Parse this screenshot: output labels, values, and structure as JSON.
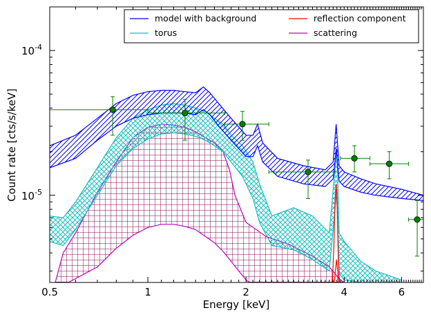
{
  "chart_data": {
    "type": "line",
    "title": "",
    "xlabel": "Energy [keV]",
    "ylabel": "Count rate [cts/s/keV]",
    "xscale": "log",
    "yscale": "log",
    "xlim": [
      0.5,
      7.0
    ],
    "ylim": [
      2.5e-06,
      0.0002
    ],
    "grid": false,
    "legend_position": "top-right",
    "xtick_labels": [
      "0.5",
      "1",
      "2",
      "4",
      "6"
    ],
    "xticks": [
      0.5,
      1,
      2,
      4,
      6
    ],
    "ytick_labels": [
      {
        "base": "10",
        "exp": "-5",
        "value": 1e-05
      },
      {
        "base": "10",
        "exp": "-4",
        "value": 0.0001
      }
    ],
    "legend": [
      {
        "label": "model with background",
        "color": "#0000ff"
      },
      {
        "label": "torus",
        "color": "#17bebe"
      },
      {
        "label": "reflection component",
        "color": "#ff0000"
      },
      {
        "label": "scattering",
        "color": "#bf00bf"
      }
    ],
    "series": [
      {
        "name": "model with background",
        "color": "#0000ff",
        "band": true,
        "upper": [
          [
            0.5,
            2.2e-05
          ],
          [
            0.6,
            2.6e-05
          ],
          [
            0.7,
            3.4e-05
          ],
          [
            0.8,
            4.3e-05
          ],
          [
            0.9,
            4.9e-05
          ],
          [
            1.0,
            5.2e-05
          ],
          [
            1.1,
            5.3e-05
          ],
          [
            1.2,
            5.3e-05
          ],
          [
            1.3,
            5.2e-05
          ],
          [
            1.4,
            5.1e-05
          ],
          [
            1.48,
            5.6e-05
          ],
          [
            1.55,
            5.1e-05
          ],
          [
            1.65,
            4.3e-05
          ],
          [
            1.8,
            3.4e-05
          ],
          [
            2.0,
            2.6e-05
          ],
          [
            2.1,
            2.6e-05
          ],
          [
            2.17,
            3.1e-05
          ],
          [
            2.25,
            2.3e-05
          ],
          [
            2.5,
            1.8e-05
          ],
          [
            3.0,
            1.6e-05
          ],
          [
            3.5,
            1.5e-05
          ],
          [
            3.7,
            1.7e-05
          ],
          [
            3.78,
            3.1e-05
          ],
          [
            3.86,
            1.6e-05
          ],
          [
            4.0,
            1.45e-05
          ],
          [
            4.5,
            1.3e-05
          ],
          [
            5.0,
            1.2e-05
          ],
          [
            6.0,
            1.1e-05
          ],
          [
            7.0,
            1e-05
          ]
        ],
        "lower": [
          [
            0.5,
            1.55e-05
          ],
          [
            0.6,
            1.8e-05
          ],
          [
            0.7,
            2.4e-05
          ],
          [
            0.8,
            3e-05
          ],
          [
            0.9,
            3.4e-05
          ],
          [
            1.0,
            3.6e-05
          ],
          [
            1.1,
            3.7e-05
          ],
          [
            1.2,
            3.7e-05
          ],
          [
            1.3,
            3.7e-05
          ],
          [
            1.4,
            3.6e-05
          ],
          [
            1.48,
            3.9e-05
          ],
          [
            1.55,
            3.6e-05
          ],
          [
            1.65,
            3e-05
          ],
          [
            1.8,
            2.4e-05
          ],
          [
            2.0,
            1.85e-05
          ],
          [
            2.1,
            1.85e-05
          ],
          [
            2.17,
            2.2e-05
          ],
          [
            2.25,
            1.7e-05
          ],
          [
            2.5,
            1.35e-05
          ],
          [
            3.0,
            1.2e-05
          ],
          [
            3.5,
            1.15e-05
          ],
          [
            3.7,
            1.3e-05
          ],
          [
            3.78,
            2.1e-05
          ],
          [
            3.86,
            1.25e-05
          ],
          [
            4.0,
            1.15e-05
          ],
          [
            4.5,
            1.05e-05
          ],
          [
            5.0,
            1e-05
          ],
          [
            6.0,
            9.5e-06
          ],
          [
            7.0,
            9.2e-06
          ]
        ]
      },
      {
        "name": "torus",
        "color": "#17bebe",
        "band": true,
        "upper": [
          [
            0.5,
            7.2e-06
          ],
          [
            0.55,
            7e-06
          ],
          [
            0.6,
            9e-06
          ],
          [
            0.7,
            1.55e-05
          ],
          [
            0.8,
            2.5e-05
          ],
          [
            0.9,
            3.4e-05
          ],
          [
            1.0,
            3.9e-05
          ],
          [
            1.1,
            4.2e-05
          ],
          [
            1.2,
            4.3e-05
          ],
          [
            1.3,
            4.2e-05
          ],
          [
            1.4,
            4e-05
          ],
          [
            1.5,
            3.8e-05
          ],
          [
            1.6,
            3.4e-05
          ],
          [
            1.7,
            3.1e-05
          ],
          [
            1.8,
            2.6e-05
          ],
          [
            1.95,
            2.2e-05
          ],
          [
            2.1,
            1.7e-05
          ],
          [
            2.2,
            1.2e-05
          ],
          [
            2.4,
            7.2e-06
          ],
          [
            2.8,
            8.2e-06
          ],
          [
            3.2,
            7.2e-06
          ],
          [
            3.6,
            5.5e-06
          ],
          [
            3.75,
            1.5e-05
          ],
          [
            3.8,
            2.1e-05
          ],
          [
            3.86,
            5.5e-06
          ],
          [
            4.0,
            4.8e-06
          ],
          [
            4.5,
            3.5e-06
          ],
          [
            5.0,
            3e-06
          ],
          [
            6.0,
            2.6e-06
          ]
        ],
        "lower": [
          [
            0.5,
            4.8e-06
          ],
          [
            0.55,
            4.5e-06
          ],
          [
            0.6,
            5.8e-06
          ],
          [
            0.7,
            1e-05
          ],
          [
            0.8,
            1.6e-05
          ],
          [
            0.9,
            2.1e-05
          ],
          [
            1.0,
            2.45e-05
          ],
          [
            1.1,
            2.65e-05
          ],
          [
            1.2,
            2.7e-05
          ],
          [
            1.3,
            2.65e-05
          ],
          [
            1.4,
            2.55e-05
          ],
          [
            1.5,
            2.4e-05
          ],
          [
            1.6,
            2.2e-05
          ],
          [
            1.7,
            2e-05
          ],
          [
            1.8,
            1.7e-05
          ],
          [
            1.95,
            1.35e-05
          ],
          [
            2.1,
            9.5e-06
          ],
          [
            2.2,
            6.5e-06
          ],
          [
            2.4,
            4.5e-06
          ],
          [
            2.8,
            4.2e-06
          ],
          [
            3.2,
            3.6e-06
          ],
          [
            3.6,
            3e-06
          ],
          [
            3.75,
            8e-06
          ],
          [
            3.8,
            1.1e-05
          ],
          [
            3.86,
            2.9e-06
          ],
          [
            4.0,
            2.6e-06
          ],
          [
            4.5,
            2.5e-06
          ]
        ]
      },
      {
        "name": "scattering",
        "color": "#bf00bf",
        "band": true,
        "upper": [
          [
            0.52,
            2.5e-06
          ],
          [
            0.55,
            4e-06
          ],
          [
            0.6,
            5.5e-06
          ],
          [
            0.7,
            1.05e-05
          ],
          [
            0.8,
            1.7e-05
          ],
          [
            0.9,
            2.5e-05
          ],
          [
            1.0,
            2.95e-05
          ],
          [
            1.1,
            3.1e-05
          ],
          [
            1.2,
            3.05e-05
          ],
          [
            1.3,
            2.95e-05
          ],
          [
            1.4,
            2.75e-05
          ],
          [
            1.5,
            2.5e-05
          ],
          [
            1.6,
            2.3e-05
          ],
          [
            1.7,
            2e-05
          ],
          [
            1.78,
            1.5e-05
          ],
          [
            1.85,
            1e-05
          ],
          [
            2.0,
            6.5e-06
          ],
          [
            2.3,
            5.2e-06
          ],
          [
            2.7,
            4.6e-06
          ],
          [
            3.2,
            3.8e-06
          ],
          [
            3.6,
            3.2e-06
          ],
          [
            3.9,
            2.6e-06
          ],
          [
            4.0,
            2.5e-06
          ]
        ],
        "lower": [
          [
            0.57,
            2.5e-06
          ],
          [
            0.7,
            3.2e-06
          ],
          [
            0.8,
            4.3e-06
          ],
          [
            0.9,
            5.3e-06
          ],
          [
            1.0,
            6e-06
          ],
          [
            1.1,
            6.3e-06
          ],
          [
            1.2,
            6.3e-06
          ],
          [
            1.3,
            6.1e-06
          ],
          [
            1.4,
            5.8e-06
          ],
          [
            1.5,
            5.2e-06
          ],
          [
            1.6,
            4.7e-06
          ],
          [
            1.7,
            4.1e-06
          ],
          [
            1.8,
            3.5e-06
          ],
          [
            1.9,
            3e-06
          ],
          [
            2.0,
            2.6e-06
          ],
          [
            2.05,
            2.5e-06
          ]
        ]
      },
      {
        "name": "reflection component",
        "color": "#ff0000",
        "band": false,
        "curves": [
          [
            [
              3.68,
              2.5e-06
            ],
            [
              3.72,
              4.5e-06
            ],
            [
              3.75,
              9e-06
            ],
            [
              3.78,
              1.2e-05
            ],
            [
              3.81,
              8e-06
            ],
            [
              3.84,
              3.5e-06
            ],
            [
              3.87,
              2.5e-06
            ]
          ],
          [
            [
              3.73,
              2.5e-06
            ],
            [
              3.76,
              3e-06
            ],
            [
              3.79,
              3.6e-06
            ],
            [
              3.82,
              3e-06
            ],
            [
              3.85,
              2.5e-06
            ]
          ]
        ]
      },
      {
        "name": "data",
        "color": "#008000",
        "points": [
          {
            "x": 0.78,
            "y": 3.9e-05,
            "xerr": [
              0.5,
              1.0
            ],
            "yerr": [
              2.6e-05,
              4.8e-05
            ]
          },
          {
            "x": 1.3,
            "y": 3.7e-05,
            "xerr": [
              1.0,
              1.72
            ],
            "yerr": [
              2.4e-05,
              4.6e-05
            ]
          },
          {
            "x": 1.95,
            "y": 3.1e-05,
            "xerr": [
              1.72,
              2.35
            ],
            "yerr": [
              2.4e-05,
              3.8e-05
            ]
          },
          {
            "x": 3.1,
            "y": 1.45e-05,
            "xerr": [
              2.35,
              3.75
            ],
            "yerr": [
              9.5e-06,
              1.75e-05
            ]
          },
          {
            "x": 4.3,
            "y": 1.8e-05,
            "xerr": [
              3.9,
              4.8
            ],
            "yerr": [
              1.45e-05,
              2.2e-05
            ]
          },
          {
            "x": 5.5,
            "y": 1.65e-05,
            "xerr": [
              4.8,
              6.3
            ],
            "yerr": [
              1.3e-05,
              2e-05
            ]
          },
          {
            "x": 6.7,
            "y": 6.8e-06,
            "xerr": [
              6.3,
              7.2
            ],
            "yerr": [
              3.8e-06,
              9.2e-06
            ]
          }
        ]
      }
    ]
  }
}
